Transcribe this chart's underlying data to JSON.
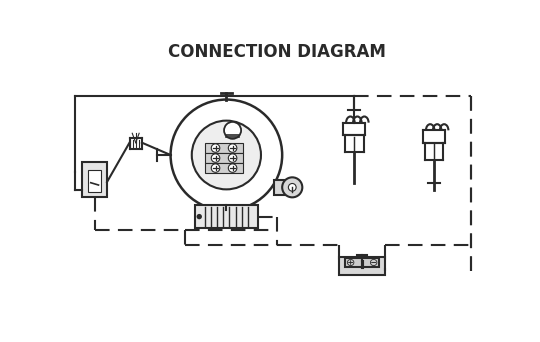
{
  "title": "CONNECTION DIAGRAM",
  "bg": "#ffffff",
  "lc": "#2a2a2a",
  "lw": 1.5,
  "fig_w": 5.4,
  "fig_h": 3.42,
  "dpi": 100
}
